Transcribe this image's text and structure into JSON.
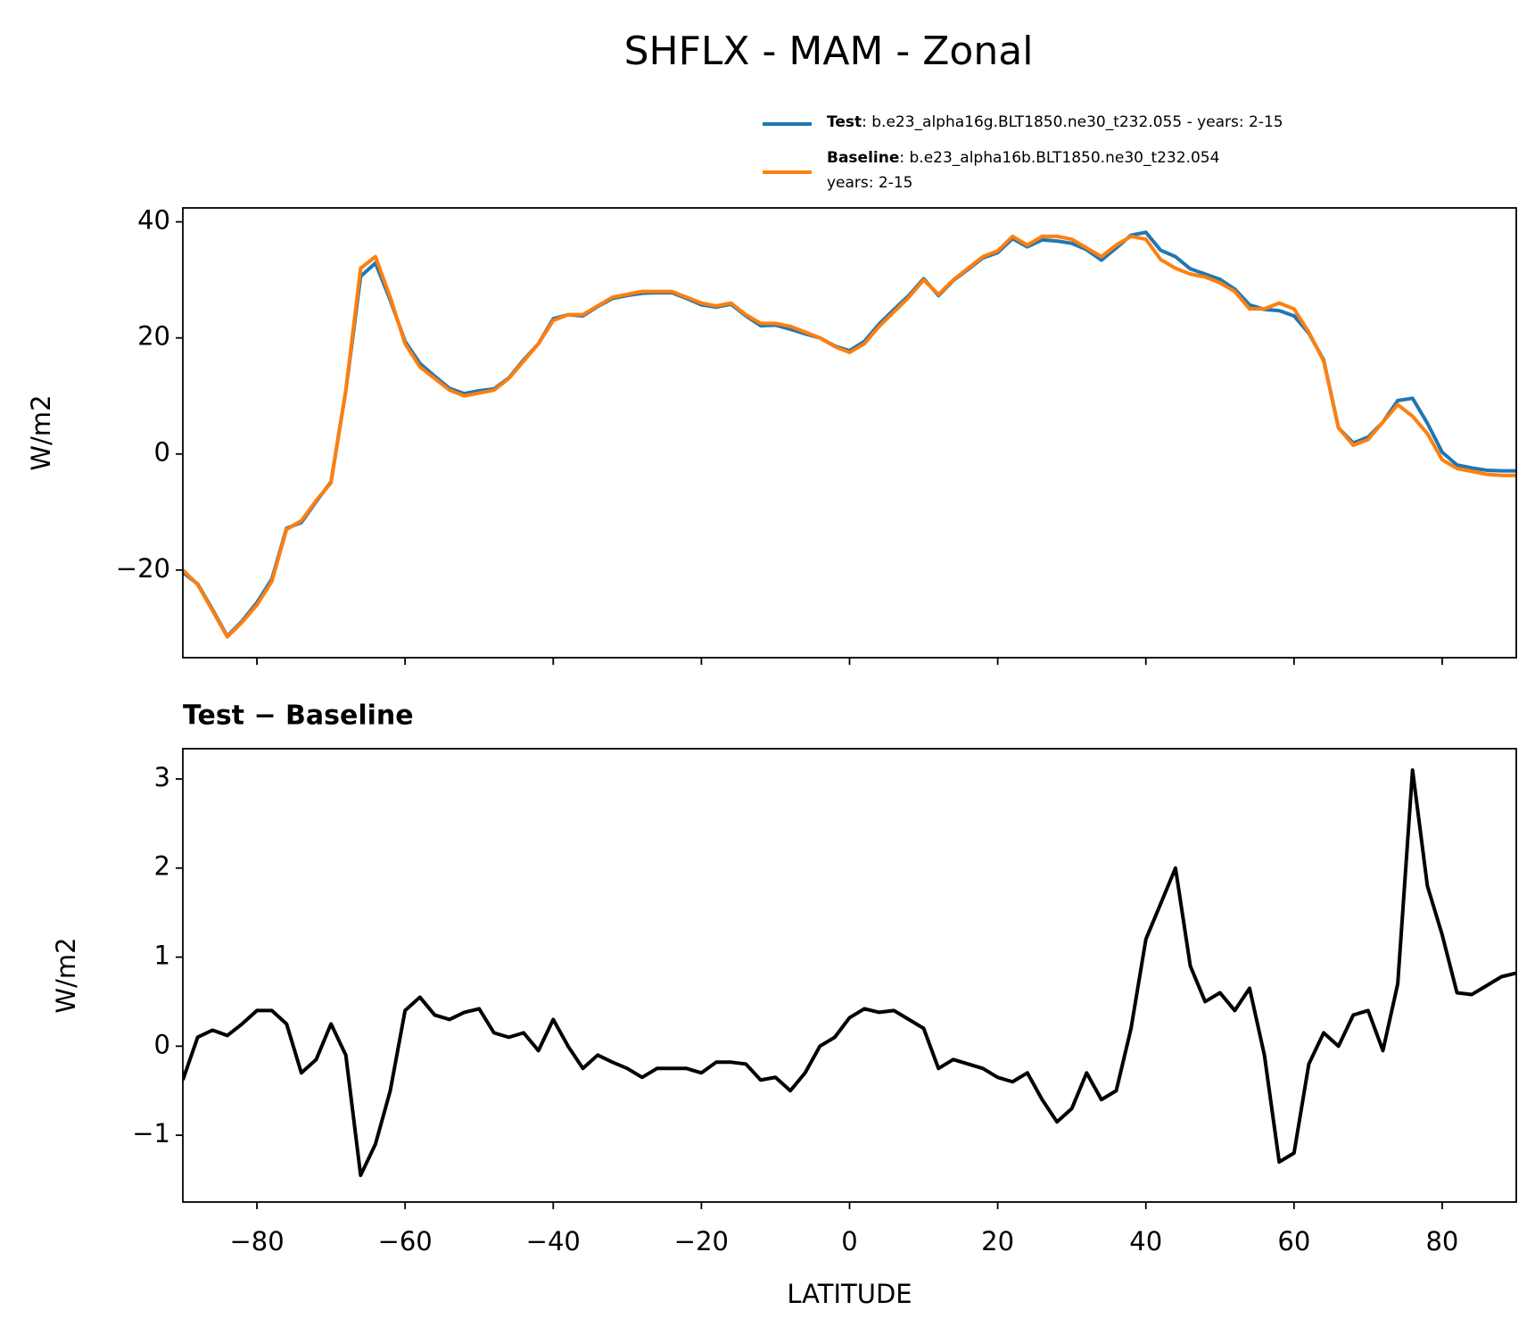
{
  "title": "SHFLX - MAM - Zonal",
  "chart_data": [
    {
      "type": "line",
      "ylabel": "W/m2",
      "x": [
        -90,
        -88,
        -86,
        -84,
        -82,
        -80,
        -78,
        -76,
        -74,
        -72,
        -70,
        -68,
        -66,
        -64,
        -62,
        -60,
        -58,
        -56,
        -54,
        -52,
        -50,
        -48,
        -46,
        -44,
        -42,
        -40,
        -38,
        -36,
        -34,
        -32,
        -30,
        -28,
        -26,
        -24,
        -22,
        -20,
        -18,
        -16,
        -14,
        -12,
        -10,
        -8,
        -6,
        -4,
        -2,
        0,
        2,
        4,
        6,
        8,
        10,
        12,
        14,
        16,
        18,
        20,
        22,
        24,
        26,
        28,
        30,
        32,
        34,
        36,
        38,
        40,
        42,
        44,
        46,
        48,
        50,
        52,
        54,
        56,
        58,
        60,
        62,
        64,
        66,
        68,
        70,
        72,
        74,
        76,
        78,
        80,
        82,
        84,
        86,
        88,
        90
      ],
      "series": [
        {
          "name": "Test",
          "label_lines": [
            ": b.e23_alpha16g.BLT1850.ne30_t232.055 - years: 2-15"
          ],
          "color": "#1f77b4",
          "values": [
            -20.4,
            -22.4,
            -26.8,
            -31.4,
            -28.8,
            -25.6,
            -21.6,
            -12.8,
            -11.8,
            -8.2,
            -4.8,
            10.9,
            30.6,
            32.9,
            26.5,
            19.4,
            15.6,
            13.4,
            11.3,
            10.4,
            10.9,
            11.2,
            13.1,
            16.2,
            19.0,
            23.3,
            24.0,
            23.8,
            25.4,
            26.8,
            27.3,
            27.7,
            27.8,
            27.8,
            26.8,
            25.7,
            25.3,
            25.8,
            23.8,
            22.1,
            22.2,
            21.5,
            20.7,
            20.0,
            18.6,
            17.8,
            19.4,
            22.4,
            24.9,
            27.3,
            30.2,
            27.3,
            29.9,
            31.8,
            33.8,
            34.7,
            37.1,
            35.7,
            36.9,
            36.7,
            36.3,
            35.2,
            33.4,
            35.5,
            37.7,
            38.2,
            35.1,
            34.0,
            31.9,
            31.0,
            30.1,
            28.4,
            25.7,
            24.9,
            24.7,
            23.8,
            20.8,
            16.2,
            4.5,
            1.9,
            2.9,
            5.5,
            9.2,
            9.6,
            5.3,
            0.3,
            -1.9,
            -2.4,
            -2.8,
            -2.9,
            -2.9
          ]
        },
        {
          "name": "Baseline",
          "label_lines": [
            ": b.e23_alpha16b.BLT1850.ne30_t232.054",
            "years: 2-15"
          ],
          "color": "#ff7f0e",
          "values": [
            -20,
            -22.5,
            -27,
            -31.5,
            -29,
            -26,
            -22,
            -13,
            -11.5,
            -8,
            -5,
            11,
            32,
            34,
            27,
            19,
            15,
            13,
            11,
            10,
            10.5,
            11,
            13,
            16,
            19,
            23,
            24,
            24,
            25.5,
            27,
            27.5,
            28,
            28,
            28,
            27,
            26,
            25.5,
            26,
            24,
            22.5,
            22.5,
            22,
            21,
            20,
            18.5,
            17.5,
            19,
            22,
            24.5,
            27,
            30,
            27.5,
            30,
            32,
            34,
            35,
            37.5,
            36,
            37.5,
            37.5,
            37,
            35.5,
            34,
            36,
            37.5,
            37,
            33.5,
            32,
            31,
            30.5,
            29.5,
            28,
            25,
            25,
            26,
            25,
            21,
            16,
            4.5,
            1.5,
            2.5,
            5.5,
            8.5,
            6.5,
            3.5,
            -1,
            -2.5,
            -3,
            -3.5,
            -3.7,
            -3.7
          ]
        }
      ],
      "xlim": [
        -90,
        90
      ],
      "xticks": [
        -80,
        -60,
        -40,
        -20,
        0,
        20,
        40,
        60,
        80
      ],
      "ylim": [
        -35.1,
        42.4
      ],
      "yticks": [
        {
          "value": -20,
          "label": "−20"
        },
        0,
        20,
        40
      ],
      "grid": false,
      "legend": "upper right"
    },
    {
      "type": "line",
      "title": "Test − Baseline",
      "xlabel": "LATITUDE",
      "ylabel": "W/m2",
      "x": [
        -90,
        -88,
        -86,
        -84,
        -82,
        -80,
        -78,
        -76,
        -74,
        -72,
        -70,
        -68,
        -66,
        -64,
        -62,
        -60,
        -58,
        -56,
        -54,
        -52,
        -50,
        -48,
        -46,
        -44,
        -42,
        -40,
        -38,
        -36,
        -34,
        -32,
        -30,
        -28,
        -26,
        -24,
        -22,
        -20,
        -18,
        -16,
        -14,
        -12,
        -10,
        -8,
        -6,
        -4,
        -2,
        0,
        2,
        4,
        6,
        8,
        10,
        12,
        14,
        16,
        18,
        20,
        22,
        24,
        26,
        28,
        30,
        32,
        34,
        36,
        38,
        40,
        42,
        44,
        46,
        48,
        50,
        52,
        54,
        56,
        58,
        60,
        62,
        64,
        66,
        68,
        70,
        72,
        74,
        76,
        78,
        80,
        82,
        84,
        86,
        88,
        90
      ],
      "series": [
        {
          "color": "#000000",
          "values": [
            -0.38,
            0.1,
            0.18,
            0.12,
            0.25,
            0.4,
            0.4,
            0.25,
            -0.3,
            -0.15,
            0.25,
            -0.1,
            -1.45,
            -1.1,
            -0.5,
            0.4,
            0.55,
            0.35,
            0.3,
            0.38,
            0.42,
            0.15,
            0.1,
            0.15,
            -0.05,
            0.3,
            0.0,
            -0.25,
            -0.1,
            -0.18,
            -0.25,
            -0.35,
            -0.25,
            -0.25,
            -0.25,
            -0.3,
            -0.18,
            -0.18,
            -0.2,
            -0.38,
            -0.35,
            -0.5,
            -0.3,
            0.0,
            0.1,
            0.32,
            0.42,
            0.38,
            0.4,
            0.3,
            0.2,
            -0.25,
            -0.15,
            -0.2,
            -0.25,
            -0.35,
            -0.4,
            -0.3,
            -0.6,
            -0.85,
            -0.7,
            -0.3,
            -0.6,
            -0.5,
            0.2,
            1.2,
            1.6,
            2.0,
            0.9,
            0.5,
            0.6,
            0.4,
            0.65,
            -0.1,
            -1.3,
            -1.2,
            -0.2,
            0.15,
            0.0,
            0.35,
            0.4,
            -0.05,
            0.7,
            3.1,
            1.8,
            1.25,
            0.6,
            0.58,
            0.68,
            0.78,
            0.82
          ]
        }
      ],
      "xlim": [
        -90,
        90
      ],
      "xticks": [
        {
          "value": -80,
          "label": "−80"
        },
        {
          "value": -60,
          "label": "−60"
        },
        {
          "value": -40,
          "label": "−40"
        },
        {
          "value": -20,
          "label": "−20"
        },
        0,
        20,
        40,
        60,
        80
      ],
      "ylim": [
        -1.75,
        3.34
      ],
      "yticks": [
        {
          "value": -1,
          "label": "−1"
        },
        0,
        1,
        2,
        3
      ],
      "grid": false
    }
  ]
}
